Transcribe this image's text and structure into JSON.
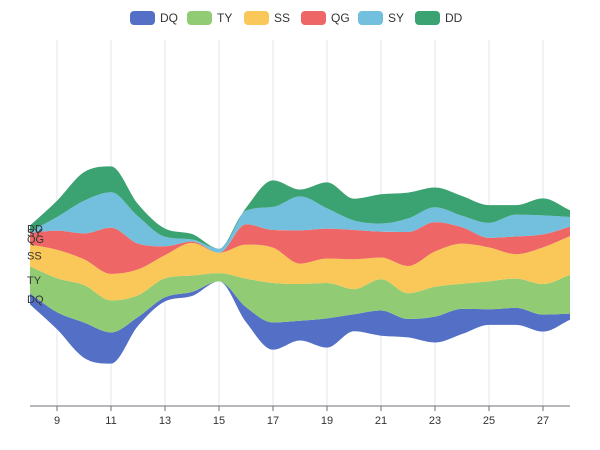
{
  "chart_data": {
    "type": "area",
    "layout": "streamgraph",
    "grid": true,
    "legend_position": "top-center",
    "x": [
      8,
      9,
      10,
      11,
      12,
      13,
      14,
      15,
      16,
      17,
      18,
      19,
      20,
      21,
      22,
      23,
      24,
      25,
      26,
      27,
      28
    ],
    "x_ticks": [
      "9",
      "11",
      "13",
      "15",
      "17",
      "19",
      "21",
      "23",
      "25",
      "27"
    ],
    "xlim": [
      8,
      28
    ],
    "series": [
      {
        "name": "DQ",
        "color": "#5470c6",
        "values": [
          16,
          25,
          52,
          46,
          13,
          6,
          6,
          0,
          22,
          40,
          29,
          43,
          25,
          37,
          27,
          38,
          37,
          23,
          25,
          25,
          9
        ]
      },
      {
        "name": "TY",
        "color": "#91cc75",
        "values": [
          40,
          50,
          55,
          47,
          32,
          28,
          24,
          12,
          42,
          58,
          54,
          52,
          37,
          46,
          38,
          44,
          37,
          41,
          43,
          45,
          57
        ]
      },
      {
        "name": "SS",
        "color": "#fac858",
        "values": [
          32,
          42,
          38,
          39,
          38,
          34,
          48,
          30,
          50,
          52,
          30,
          36,
          44,
          32,
          40,
          52,
          59,
          50,
          36,
          54,
          57
        ]
      },
      {
        "name": "QG",
        "color": "#ee6666",
        "values": [
          17,
          28,
          38,
          68,
          38,
          13,
          2,
          0,
          30,
          26,
          49,
          44,
          43,
          38,
          50,
          43,
          24,
          14,
          26,
          19,
          14
        ]
      },
      {
        "name": "SY",
        "color": "#73c0de",
        "values": [
          2,
          20,
          48,
          52,
          40,
          14,
          3,
          6,
          20,
          34,
          50,
          30,
          14,
          12,
          20,
          22,
          17,
          22,
          32,
          28,
          14
        ]
      },
      {
        "name": "DD",
        "color": "#3ba272",
        "values": [
          9,
          24,
          42,
          38,
          18,
          12,
          8,
          0,
          4,
          39,
          10,
          38,
          32,
          43,
          38,
          29,
          29,
          26,
          14,
          25,
          10
        ]
      }
    ]
  }
}
